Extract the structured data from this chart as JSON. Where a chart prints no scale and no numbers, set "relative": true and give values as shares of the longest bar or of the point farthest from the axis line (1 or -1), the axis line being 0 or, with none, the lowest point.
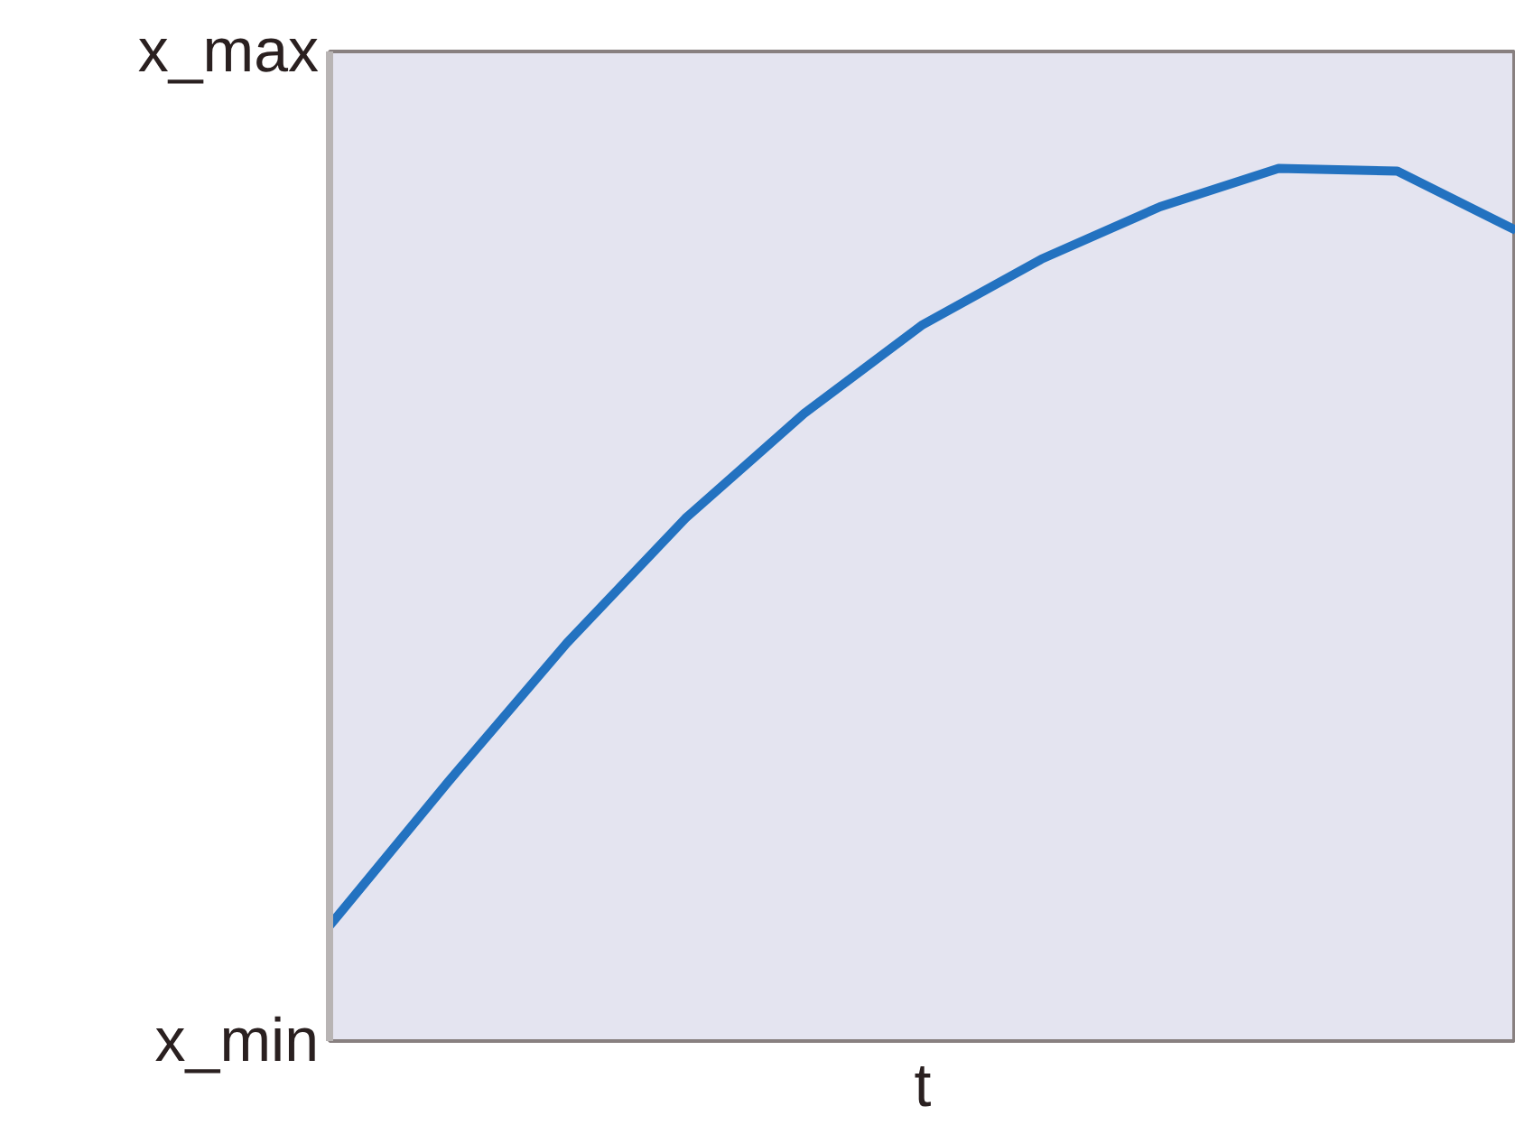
{
  "chart_data": {
    "type": "line",
    "xlabel": "t",
    "relative": true,
    "annotations": [
      "x_max",
      "x_min"
    ],
    "categories": [
      null,
      null,
      null,
      null,
      null,
      null,
      null,
      null,
      null,
      null,
      null
    ],
    "series": [
      {
        "color": "#2372c0",
        "values": [
          0.132,
          0.297,
          0.456,
          0.599,
          0.719,
          0.821,
          0.896,
          0.956,
          1,
          0.997,
          0.929
        ]
      }
    ],
    "grid": false,
    "marker": "none",
    "line_style": "solid"
  }
}
